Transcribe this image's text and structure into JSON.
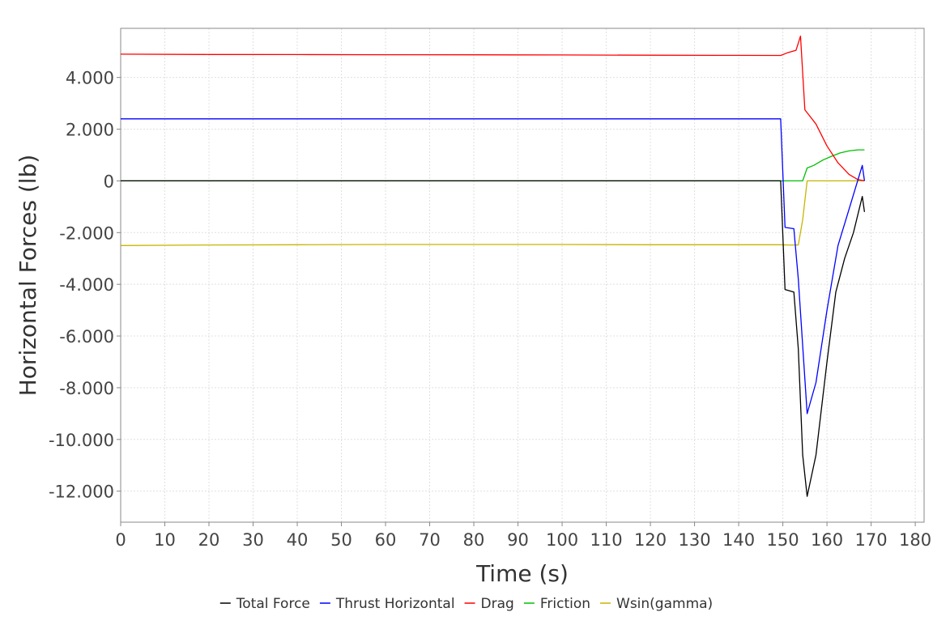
{
  "chart_data": {
    "type": "line",
    "title": "",
    "xlabel": "Time (s)",
    "ylabel": "Horizontal Forces (lb)",
    "xlim": [
      0,
      182
    ],
    "ylim": [
      -13200,
      5900
    ],
    "grid": true,
    "legend_position": "bottom",
    "x_ticks": [
      0,
      10,
      20,
      30,
      40,
      50,
      60,
      70,
      80,
      90,
      100,
      110,
      120,
      130,
      140,
      150,
      160,
      170,
      180
    ],
    "x_tick_labels": [
      "0",
      "10",
      "20",
      "30",
      "40",
      "50",
      "60",
      "70",
      "80",
      "90",
      "100",
      "110",
      "120",
      "130",
      "140",
      "150",
      "160",
      "170",
      "180"
    ],
    "y_ticks": [
      4000,
      2000,
      0,
      -2000,
      -4000,
      -6000,
      -8000,
      -10000,
      -12000
    ],
    "y_tick_labels": [
      "4.000",
      "2.000",
      "0",
      "-2.000",
      "-4.000",
      "-6.000",
      "-8.000",
      "-10.000",
      "-12.000"
    ],
    "series": [
      {
        "name": "Total Force",
        "color": "#000000",
        "x": [
          0,
          20,
          40,
          60,
          80,
          100,
          120,
          140,
          149.5,
          150.5,
          152.5,
          153.5,
          154.5,
          155.5,
          157.5,
          160,
          162,
          164,
          166,
          168,
          168.5
        ],
        "y": [
          0,
          0,
          0,
          0,
          0,
          0,
          0,
          0,
          0,
          -4200,
          -4300,
          -6500,
          -10600,
          -12200,
          -10600,
          -7000,
          -4300,
          -3000,
          -2000,
          -600,
          -1200
        ]
      },
      {
        "name": "Thrust Horizontal",
        "color": "#0000ff",
        "x": [
          0,
          20,
          40,
          60,
          80,
          100,
          120,
          140,
          149.5,
          150.5,
          152.5,
          153.5,
          155.5,
          157.5,
          160,
          162.5,
          165,
          168,
          168.5
        ],
        "y": [
          2400,
          2400,
          2400,
          2400,
          2400,
          2400,
          2400,
          2400,
          2400,
          -1800,
          -1850,
          -3800,
          -9000,
          -7800,
          -5000,
          -2500,
          -1100,
          600,
          0
        ]
      },
      {
        "name": "Drag",
        "color": "#ff0000",
        "x": [
          0,
          20,
          40,
          60,
          80,
          100,
          120,
          140,
          149.5,
          151,
          153,
          154,
          155,
          157.5,
          160,
          162.5,
          165,
          167,
          168.5
        ],
        "y": [
          4900,
          4890,
          4885,
          4880,
          4875,
          4870,
          4860,
          4855,
          4850,
          4950,
          5050,
          5600,
          2750,
          2200,
          1350,
          700,
          250,
          50,
          0
        ]
      },
      {
        "name": "Friction",
        "color": "#00c000",
        "x": [
          0,
          20,
          40,
          60,
          80,
          100,
          120,
          140,
          149.5,
          152,
          154.5,
          155.5,
          157,
          159,
          161,
          163,
          165,
          167,
          168.5
        ],
        "y": [
          0,
          0,
          0,
          0,
          0,
          0,
          0,
          0,
          0,
          0,
          0,
          500,
          600,
          800,
          950,
          1080,
          1160,
          1200,
          1200
        ]
      },
      {
        "name": "Wsin(gamma)",
        "color": "#c8b400",
        "x": [
          0,
          20,
          40,
          60,
          80,
          100,
          120,
          140,
          149.5,
          151,
          153.5,
          154.5,
          155.5,
          160,
          165,
          168.5
        ],
        "y": [
          -2500,
          -2480,
          -2470,
          -2460,
          -2460,
          -2460,
          -2470,
          -2470,
          -2470,
          -2480,
          -2480,
          -1500,
          0,
          0,
          0,
          0
        ]
      }
    ]
  }
}
